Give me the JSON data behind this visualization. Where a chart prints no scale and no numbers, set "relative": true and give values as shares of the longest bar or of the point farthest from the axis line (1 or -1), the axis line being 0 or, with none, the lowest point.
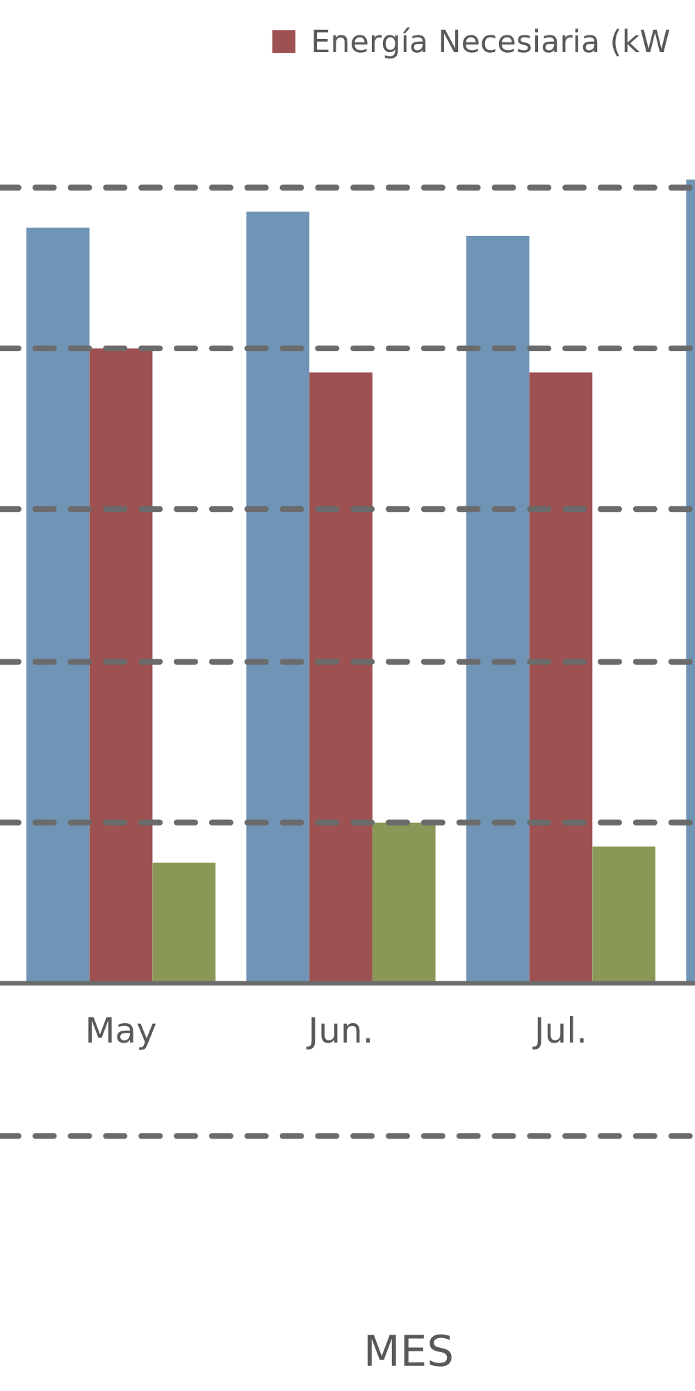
{
  "chart_data": {
    "type": "bar",
    "relative": true,
    "annotations": [
      "MES"
    ],
    "categories": [
      "May",
      "Jun.",
      "Jul.",
      null
    ],
    "series": [
      {
        "color": "#7094b6",
        "values": [
          0.94,
          0.96,
          0.93,
          1
        ]
      },
      {
        "name": "Energía Necesiaria (kW",
        "color": "#9e5151",
        "values": [
          0.79,
          0.76,
          0.76,
          null
        ]
      },
      {
        "color": "#8a9857",
        "values": [
          0.15,
          0.2,
          0.17,
          null
        ]
      }
    ],
    "ref_lines": [
      {
        "axis": "y",
        "value": -0.19,
        "color": "#6b6b6b",
        "line_style": "dashed"
      },
      {
        "axis": "y",
        "value": 0.2,
        "color": "#6b6b6b",
        "line_style": "dashed"
      },
      {
        "axis": "y",
        "value": 0.4,
        "color": "#6b6b6b",
        "line_style": "dashed"
      },
      {
        "axis": "y",
        "value": 0.59,
        "color": "#6b6b6b",
        "line_style": "dashed"
      },
      {
        "axis": "y",
        "value": 0.79,
        "color": "#6b6b6b",
        "line_style": "dashed"
      },
      {
        "axis": "y",
        "value": 0.99,
        "color": "#6b6b6b",
        "line_style": "dashed"
      }
    ],
    "legend": "top right"
  }
}
